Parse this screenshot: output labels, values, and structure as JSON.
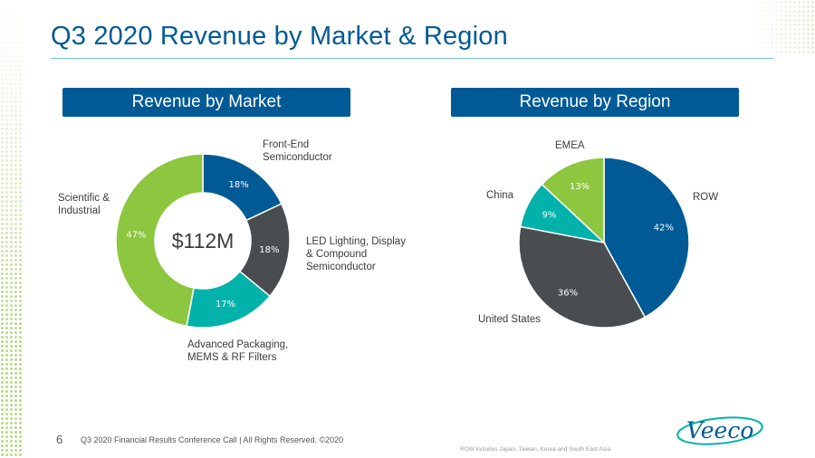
{
  "page": {
    "title": "Q3 2020 Revenue by Market & Region",
    "page_number": "6",
    "footer": "Q3 2020 Financial Results Conference Call  |  All Rights Reserved. ©2020",
    "footnote": "ROW includes Japan, Taiwan, Korea and South East Asia",
    "logo_text": "Veeco"
  },
  "colors": {
    "brand_blue": "#005a96",
    "dark_gray": "#4a4d50",
    "teal": "#00b2a9",
    "green": "#8dc63f"
  },
  "chart_data": [
    {
      "type": "pie",
      "title": "Revenue by Market",
      "donut": true,
      "center_label": "$112M",
      "slices": [
        {
          "label": "Front-End\nSemiconductor",
          "value": 18,
          "display": "18%",
          "color": "#005a96"
        },
        {
          "label": "LED Lighting, Display\n& Compound\nSemiconductor",
          "value": 18,
          "display": "18%",
          "color": "#4a4d50"
        },
        {
          "label": "Advanced Packaging,\nMEMS & RF Filters",
          "value": 17,
          "display": "17%",
          "color": "#00b2a9"
        },
        {
          "label": "Scientific &\nIndustrial",
          "value": 47,
          "display": "47%",
          "color": "#8dc63f"
        }
      ]
    },
    {
      "type": "pie",
      "title": "Revenue by Region",
      "donut": false,
      "slices": [
        {
          "label": "ROW",
          "value": 42,
          "display": "42%",
          "color": "#005a96"
        },
        {
          "label": "United States",
          "value": 36,
          "display": "36%",
          "color": "#4a4d50"
        },
        {
          "label": "China",
          "value": 9,
          "display": "9%",
          "color": "#00b2a9"
        },
        {
          "label": "EMEA",
          "value": 13,
          "display": "13%",
          "color": "#8dc63f"
        }
      ]
    }
  ]
}
